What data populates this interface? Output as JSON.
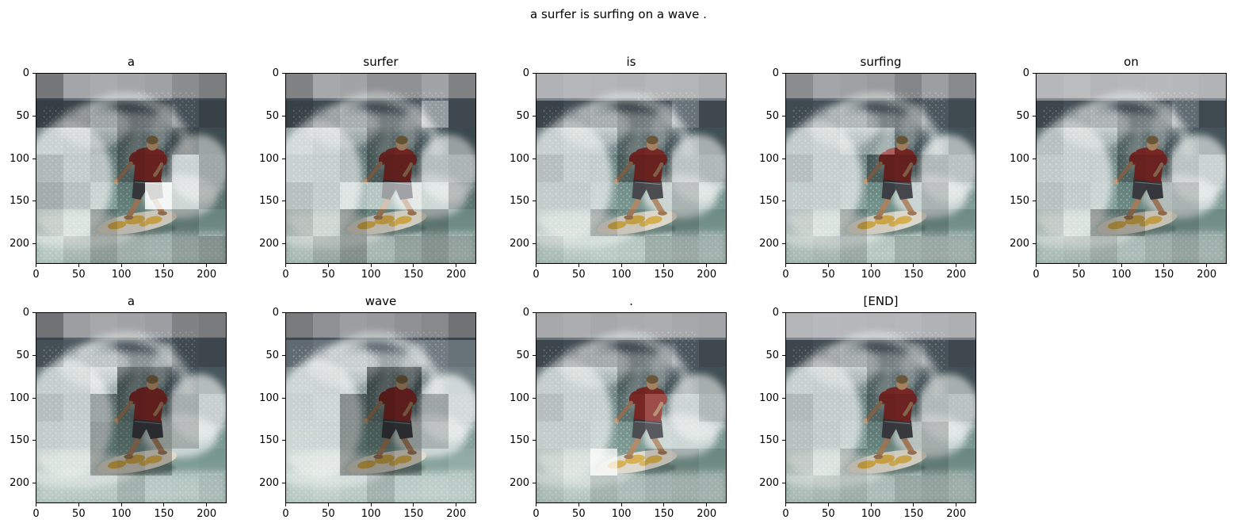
{
  "figure_title": "a surfer is surfing on a wave .",
  "axes": {
    "extent": 224,
    "x_tick_values": [
      0,
      50,
      100,
      150,
      200
    ],
    "y_tick_values": [
      0,
      50,
      100,
      150,
      200
    ],
    "x_tick_labels": [
      "0",
      "50",
      "100",
      "150",
      "200"
    ],
    "y_tick_labels": [
      "0",
      "50",
      "100",
      "150",
      "200"
    ]
  },
  "scene_colors": {
    "sky": "#97999c",
    "ocean_dark": "#4e5a62",
    "ocean_deep": "#44565c",
    "ocean_mid": "#5e7074",
    "ocean_teal": "#6f8f88",
    "water_light": "#8aa89e",
    "foam": "#e7ecea",
    "shirt": "#8c2e2b",
    "skin": "#ab8260",
    "skin_light": "#c09873",
    "skin_shadow": "#9c7554",
    "hair": "#7d6743",
    "shorts": "#3c3e43",
    "board": "#dcd7ca",
    "board_edge": "#c6c0b0",
    "board_accent": "#d4a93e",
    "shadow": "#2f3a3a"
  },
  "chart_data": {
    "type": "heatmap",
    "title": "a surfer is surfing on a wave .",
    "words": [
      "a",
      "surfer",
      "is",
      "surfing",
      "on",
      "a",
      "wave",
      ".",
      "[END]"
    ],
    "grid_rows": 7,
    "grid_cols": 7,
    "x_range": [
      0,
      224
    ],
    "y_range": [
      0,
      224
    ],
    "attention_overlay": [
      [
        [
          -0.22,
          0.12,
          0.18,
          0.12,
          0.08,
          -0.08,
          -0.18
        ],
        [
          -0.3,
          -0.25,
          -0.15,
          -0.28,
          -0.25,
          -0.12,
          -0.28
        ],
        [
          0.15,
          0.08,
          -0.08,
          -0.3,
          -0.22,
          -0.28,
          -0.2
        ],
        [
          -0.08,
          0.05,
          -0.05,
          -0.3,
          -0.26,
          0.1,
          -0.18
        ],
        [
          -0.15,
          -0.05,
          0.08,
          -0.12,
          0.8,
          0.1,
          -0.2
        ],
        [
          -0.08,
          0.05,
          -0.25,
          -0.15,
          -0.08,
          -0.22,
          -0.1
        ],
        [
          0.02,
          -0.08,
          -0.22,
          -0.12,
          -0.1,
          -0.2,
          -0.26
        ]
      ],
      [
        [
          -0.15,
          0.15,
          0.1,
          -0.05,
          -0.05,
          0.1,
          -0.15
        ],
        [
          -0.28,
          -0.18,
          -0.1,
          -0.2,
          -0.18,
          0.4,
          -0.2
        ],
        [
          0.3,
          0.15,
          -0.05,
          -0.28,
          -0.2,
          -0.05,
          -0.22
        ],
        [
          0.15,
          0.1,
          -0.05,
          -0.32,
          -0.3,
          -0.08,
          -0.12
        ],
        [
          -0.05,
          0.02,
          0.42,
          0.5,
          0.52,
          0.12,
          -0.18
        ],
        [
          -0.15,
          -0.05,
          -0.28,
          -0.15,
          -0.05,
          -0.24,
          -0.08
        ],
        [
          -0.05,
          -0.15,
          -0.28,
          -0.08,
          -0.18,
          -0.26,
          -0.18
        ]
      ],
      [
        [
          0.25,
          0.3,
          0.28,
          0.25,
          0.3,
          0.28,
          0.22
        ],
        [
          -0.25,
          -0.15,
          -0.1,
          -0.2,
          -0.18,
          0.15,
          -0.2
        ],
        [
          0.1,
          0.15,
          0.12,
          -0.2,
          -0.15,
          -0.05,
          -0.15
        ],
        [
          -0.05,
          0.12,
          0.0,
          -0.28,
          -0.25,
          -0.05,
          -0.1
        ],
        [
          0.0,
          0.0,
          0.12,
          0.05,
          0.08,
          -0.15,
          0.05
        ],
        [
          0.02,
          0.0,
          -0.18,
          -0.08,
          0.02,
          -0.18,
          -0.05
        ],
        [
          -0.05,
          0.02,
          0.08,
          0.02,
          -0.12,
          -0.15,
          -0.1
        ]
      ],
      [
        [
          -0.08,
          0.12,
          0.08,
          0.02,
          -0.12,
          0.05,
          -0.1
        ],
        [
          -0.18,
          -0.1,
          -0.05,
          -0.15,
          -0.2,
          -0.05,
          -0.18
        ],
        [
          0.02,
          0.1,
          0.28,
          0.25,
          -0.18,
          0.0,
          -0.12
        ],
        [
          -0.05,
          0.12,
          0.05,
          -0.3,
          -0.28,
          -0.1,
          -0.05
        ],
        [
          0.0,
          0.05,
          0.1,
          0.0,
          0.05,
          -0.15,
          0.1
        ],
        [
          -0.08,
          0.02,
          -0.2,
          -0.05,
          0.02,
          -0.2,
          -0.05
        ],
        [
          -0.05,
          -0.08,
          -0.15,
          0.02,
          -0.12,
          -0.15,
          -0.12
        ]
      ],
      [
        [
          0.3,
          0.34,
          0.28,
          0.3,
          0.32,
          0.3,
          0.26
        ],
        [
          -0.22,
          -0.12,
          -0.08,
          -0.18,
          -0.16,
          0.1,
          -0.18
        ],
        [
          -0.05,
          0.1,
          0.12,
          -0.18,
          -0.15,
          -0.05,
          -0.1
        ],
        [
          0.0,
          0.12,
          0.05,
          -0.26,
          -0.24,
          -0.05,
          0.1
        ],
        [
          -0.05,
          0.0,
          0.1,
          -0.05,
          -0.1,
          -0.15,
          0.12
        ],
        [
          -0.1,
          0.02,
          -0.28,
          -0.26,
          -0.1,
          -0.18,
          -0.05
        ],
        [
          -0.05,
          -0.08,
          -0.15,
          -0.05,
          -0.12,
          -0.18,
          -0.1
        ]
      ],
      [
        [
          -0.25,
          0.05,
          0.15,
          0.1,
          0.05,
          -0.15,
          -0.2
        ],
        [
          -0.12,
          0.0,
          0.05,
          -0.05,
          -0.05,
          -0.18,
          -0.22
        ],
        [
          0.05,
          0.1,
          0.38,
          -0.35,
          -0.3,
          -0.12,
          -0.08
        ],
        [
          -0.05,
          0.05,
          -0.2,
          -0.35,
          -0.32,
          -0.16,
          0.05
        ],
        [
          0.02,
          0.1,
          -0.25,
          -0.3,
          -0.3,
          -0.18,
          0.08
        ],
        [
          0.05,
          0.08,
          -0.28,
          -0.3,
          -0.24,
          0.05,
          0.02
        ],
        [
          0.08,
          0.05,
          0.02,
          -0.1,
          0.05,
          0.02,
          -0.05
        ]
      ],
      [
        [
          -0.2,
          -0.05,
          0.05,
          0.0,
          -0.05,
          -0.1,
          -0.25
        ],
        [
          0.1,
          0.15,
          0.2,
          0.1,
          0.15,
          0.2,
          0.15
        ],
        [
          0.2,
          0.15,
          0.25,
          -0.4,
          -0.35,
          0.25,
          0.2
        ],
        [
          0.15,
          0.22,
          -0.3,
          -0.4,
          -0.35,
          -0.2,
          0.25
        ],
        [
          0.2,
          0.18,
          -0.3,
          -0.35,
          -0.3,
          -0.15,
          0.15
        ],
        [
          0.15,
          0.2,
          -0.3,
          -0.32,
          -0.25,
          0.1,
          0.2
        ],
        [
          0.1,
          0.15,
          0.05,
          -0.1,
          0.1,
          0.15,
          0.1
        ]
      ],
      [
        [
          0.15,
          0.2,
          0.15,
          0.18,
          0.2,
          0.15,
          0.12
        ],
        [
          -0.22,
          -0.15,
          -0.12,
          -0.2,
          -0.15,
          -0.05,
          -0.2
        ],
        [
          0.05,
          0.12,
          0.1,
          -0.2,
          -0.15,
          -0.1,
          -0.15
        ],
        [
          -0.05,
          0.1,
          0.05,
          -0.15,
          0.15,
          0.12,
          -0.1
        ],
        [
          0.02,
          0.05,
          0.12,
          0.08,
          0.15,
          0.1,
          0.05
        ],
        [
          -0.05,
          0.02,
          0.72,
          0.05,
          -0.12,
          -0.15,
          -0.08
        ],
        [
          -0.05,
          0.02,
          -0.1,
          -0.05,
          -0.1,
          -0.12,
          -0.1
        ]
      ],
      [
        [
          0.28,
          0.32,
          0.3,
          0.28,
          0.3,
          0.25,
          0.22
        ],
        [
          -0.22,
          -0.15,
          -0.1,
          -0.18,
          -0.15,
          -0.08,
          -0.2
        ],
        [
          0.1,
          0.05,
          0.12,
          -0.18,
          -0.15,
          -0.12,
          -0.15
        ],
        [
          -0.08,
          0.05,
          0.0,
          -0.25,
          -0.22,
          -0.1,
          -0.05
        ],
        [
          -0.05,
          0.0,
          0.08,
          -0.1,
          -0.08,
          -0.18,
          0.05
        ],
        [
          -0.1,
          0.02,
          -0.15,
          -0.08,
          -0.05,
          -0.2,
          -0.08
        ],
        [
          -0.05,
          -0.08,
          -0.12,
          -0.05,
          -0.15,
          -0.18,
          -0.12
        ]
      ]
    ]
  }
}
